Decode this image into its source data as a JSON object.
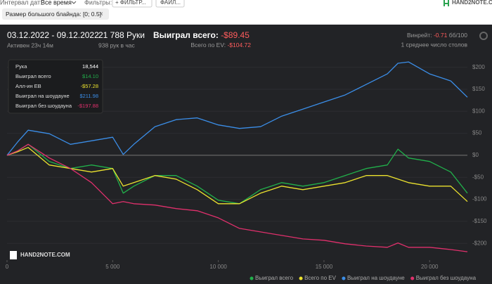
{
  "toolbar": {
    "date_label": "Интервал дат:",
    "date_value": "Все время",
    "filters_label": "Фильтры:",
    "filter_button": "+ ФИЛЬТР...",
    "file_button": "ФАЙЛ...",
    "logo": "HAND2NOTE.C"
  },
  "chip": {
    "label": "Размер большого блайнда: [0; 0.5]",
    "close": "×"
  },
  "summary": {
    "period": "03.12.2022 - 09.12.2022",
    "active": "Активен 23ч 14м",
    "hands": "21 788 Руки",
    "hands_per_hour": "938 рук в час",
    "won_label": "Выиграл всего:",
    "won_value": "-$89.45",
    "ev_label": "Всего по EV:",
    "ev_value": "-$104.72",
    "winrate_label": "Винрейт:",
    "winrate_value": "-0.71",
    "winrate_unit": "бб/100",
    "tables": "1 среднее число столов"
  },
  "tooltip": {
    "rows": [
      [
        "Рука",
        "18,544"
      ],
      [
        "Выиграл всего",
        "$14.10"
      ],
      [
        "Алл-ин ЕВ",
        "-$57.28"
      ],
      [
        "Выиграл на шоудауне",
        "$211.98"
      ],
      [
        "Выиграл без шоудауна",
        "-$197.88"
      ]
    ]
  },
  "watermark": "HAND2NOTE.COM",
  "chart_data": {
    "type": "line",
    "x": [
      0,
      500,
      1000,
      2000,
      3000,
      4000,
      5000,
      5500,
      6000,
      7000,
      8000,
      9000,
      10000,
      11000,
      12000,
      13000,
      14000,
      15000,
      16000,
      17000,
      18000,
      18500,
      19000,
      20000,
      21000,
      21788
    ],
    "series": [
      {
        "name": "Выиграл всего",
        "color": "#21b04b",
        "values": [
          0,
          10,
          25,
          -14,
          -30,
          -22,
          -30,
          -86,
          -70,
          -46,
          -46,
          -70,
          -102,
          -110,
          -78,
          -62,
          -70,
          -62,
          -46,
          -30,
          -22,
          14,
          -6,
          -14,
          -38,
          -86
        ]
      },
      {
        "name": "Всего по EV",
        "color": "#ece22e",
        "values": [
          0,
          8,
          18,
          -22,
          -30,
          -38,
          -30,
          -70,
          -62,
          -46,
          -54,
          -78,
          -110,
          -110,
          -86,
          -70,
          -78,
          -70,
          -62,
          -46,
          -46,
          -54,
          -62,
          -70,
          -70,
          -105
        ]
      },
      {
        "name": "Выиграл на шоудауне",
        "color": "#3b8ee8",
        "values": [
          0,
          30,
          57,
          49,
          25,
          33,
          41,
          2,
          25,
          65,
          81,
          85,
          69,
          61,
          65,
          89,
          105,
          121,
          137,
          161,
          185,
          209,
          212,
          185,
          169,
          132
        ]
      },
      {
        "name": "Выиграл без шоудауна",
        "color": "#e0306c",
        "values": [
          0,
          10,
          25,
          -6,
          -30,
          -62,
          -110,
          -105,
          -110,
          -113,
          -121,
          -126,
          -142,
          -166,
          -174,
          -182,
          -190,
          -193,
          -201,
          -206,
          -209,
          -199,
          -209,
          -209,
          -214,
          -219
        ]
      }
    ],
    "xlim": [
      0,
      21788
    ],
    "xticks": [
      0,
      {
        "value": 5000,
        "label": "5 000"
      },
      {
        "value": 10000,
        "label": "10 000"
      },
      {
        "value": 15000,
        "label": "15 000"
      },
      {
        "value": 20000,
        "label": "20 000"
      }
    ],
    "ylim": [
      -238,
      225
    ],
    "yticks": [
      {
        "value": 200,
        "label": "$200"
      },
      {
        "value": 150,
        "label": "$150"
      },
      {
        "value": 100,
        "label": "$100"
      },
      {
        "value": 50,
        "label": "$50"
      },
      {
        "value": 0,
        "label": "$0"
      },
      {
        "value": -50,
        "label": "-$50"
      },
      {
        "value": -100,
        "label": "-$100"
      },
      {
        "value": -150,
        "label": "-$150"
      },
      {
        "value": -200,
        "label": "-$200"
      }
    ],
    "grid": true,
    "legend": "bottom-right"
  }
}
